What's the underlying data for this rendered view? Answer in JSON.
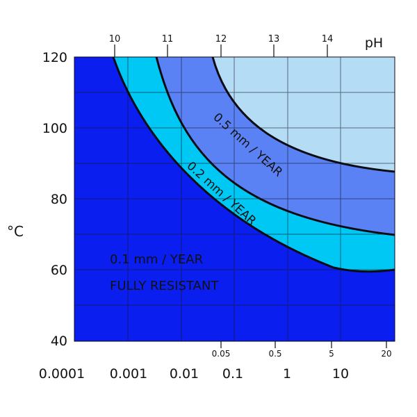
{
  "chart_data": {
    "type": "area",
    "y_axis": {
      "label": "°C",
      "range": [
        40,
        120
      ],
      "ticks": [
        "120",
        "100",
        "80",
        "60",
        "40"
      ]
    },
    "top_axis": {
      "label": "pH",
      "ticks": [
        "10",
        "11",
        "12",
        "13",
        "14"
      ]
    },
    "bottom_axis_inner": {
      "ticks": [
        "0.05",
        "0.5",
        "5",
        "20"
      ]
    },
    "bottom_axis_outer": {
      "ticks": [
        "0.0001",
        "0.001",
        "0.01",
        "0.1",
        "1",
        "10"
      ]
    },
    "zones": [
      {
        "label": "FULLY RESISTANT",
        "color": "#0a1ef0"
      },
      {
        "label": "0.1 mm / YEAR",
        "color": "#0a1ef0"
      },
      {
        "label": "0.2 mm / YEAR",
        "color": "#00c8f5"
      },
      {
        "label": "0.5 mm / YEAR",
        "color": "#5a82f5"
      },
      {
        "label": "",
        "color": "#b4dcf5"
      }
    ],
    "grid": true
  }
}
